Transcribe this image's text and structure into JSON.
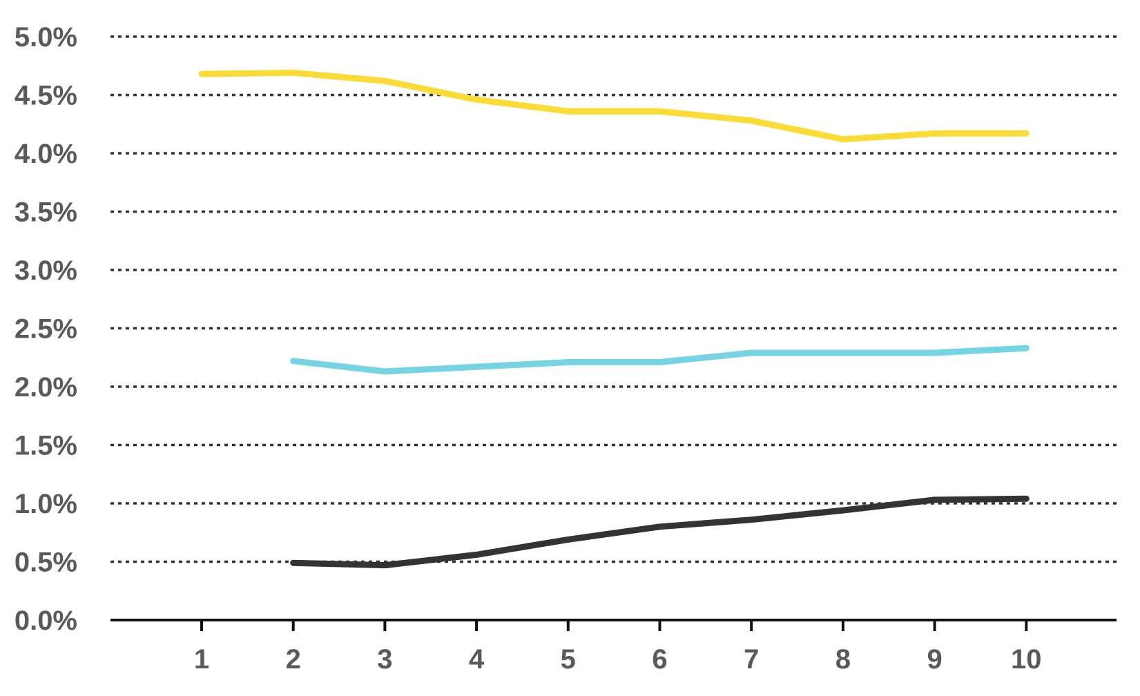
{
  "chart_data": {
    "type": "line",
    "title": "",
    "xlabel": "",
    "ylabel": "",
    "x": [
      1,
      2,
      3,
      4,
      5,
      6,
      7,
      8,
      9,
      10
    ],
    "x_tick_labels": [
      "1",
      "2",
      "3",
      "4",
      "5",
      "6",
      "7",
      "8",
      "9",
      "10"
    ],
    "y_tick_labels": [
      "0.0%",
      "0.5%",
      "1.0%",
      "1.5%",
      "2.0%",
      "2.5%",
      "3.0%",
      "3.5%",
      "4.0%",
      "4.5%",
      "5.0%"
    ],
    "ylim": [
      0,
      5
    ],
    "yticks": [
      0,
      0.5,
      1.0,
      1.5,
      2.0,
      2.5,
      3.0,
      3.5,
      4.0,
      4.5,
      5.0
    ],
    "grid": true,
    "grid_style": "dotted horizontal",
    "series": [
      {
        "color": "#FBDB35",
        "values": [
          4.68,
          4.69,
          4.62,
          4.46,
          4.36,
          4.36,
          4.28,
          4.12,
          4.17,
          4.17
        ]
      },
      {
        "color": "#75D3E3",
        "values": [
          null,
          2.22,
          2.13,
          2.17,
          2.21,
          2.21,
          2.29,
          2.29,
          2.29,
          2.33
        ]
      },
      {
        "color": "#333333",
        "values": [
          null,
          0.49,
          0.47,
          0.56,
          0.69,
          0.8,
          0.86,
          0.94,
          1.03,
          1.04
        ]
      }
    ]
  }
}
